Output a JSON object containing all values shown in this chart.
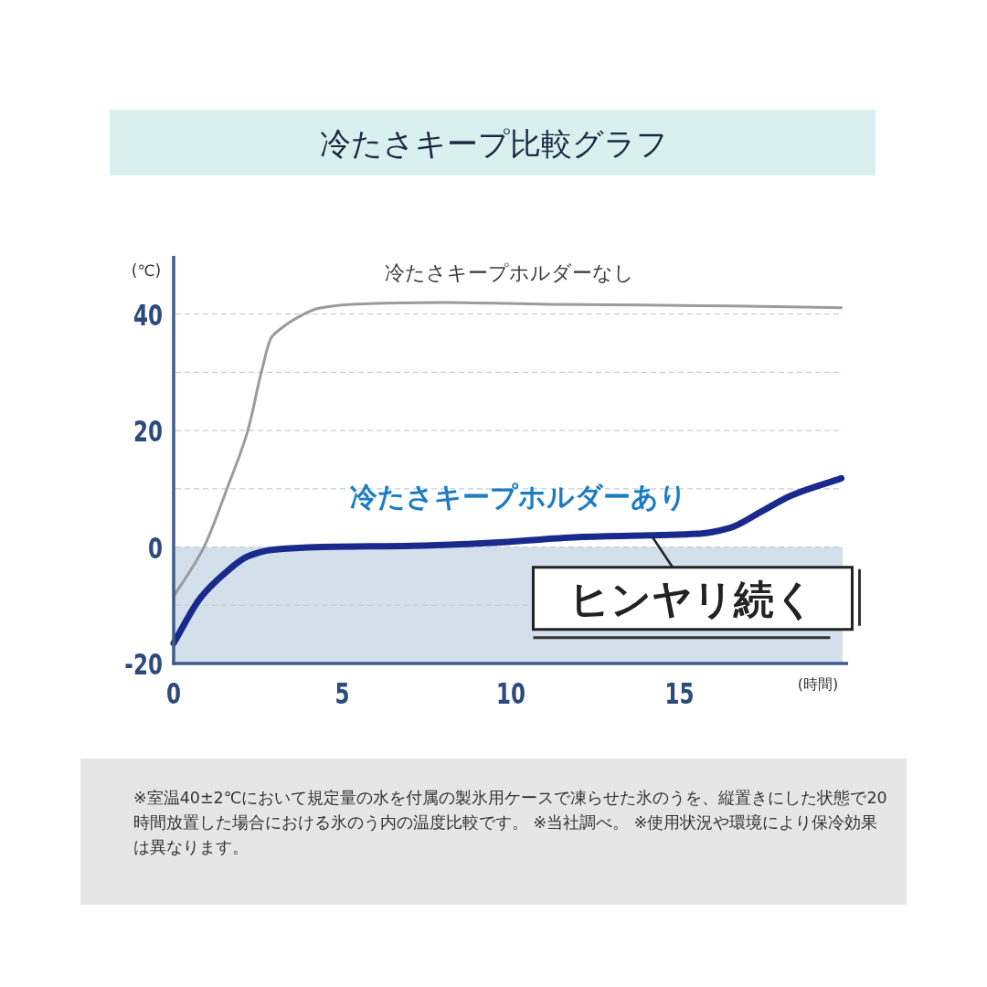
{
  "chart_data": {
    "type": "line",
    "title": "冷たさキープ比較グラフ",
    "ylabel": "(℃)",
    "xlabel": "(時間)",
    "xlim": [
      0,
      20
    ],
    "xticks": [
      0,
      5,
      10,
      15
    ],
    "ylim": [
      -20,
      50
    ],
    "yticks": [
      -20,
      {
        "value": -10,
        "label": null
      },
      0,
      {
        "value": 10,
        "label": null
      },
      20,
      {
        "value": 30,
        "label": null
      },
      40
    ],
    "grid": "y",
    "series": [
      {
        "name": "冷たさキープホルダーなし",
        "color": "#9b9b9b",
        "x": [
          0,
          0.9,
          1.6,
          2.2,
          2.6,
          2.9,
          3.2,
          3.7,
          4.3,
          5.3,
          8,
          11.1,
          16.5,
          19.8
        ],
        "values": [
          -8.5,
          0,
          10.3,
          20,
          30,
          36,
          37.6,
          39.5,
          41,
          41.7,
          42,
          41.7,
          41.4,
          41.1
        ]
      },
      {
        "name": "冷たさキープホルダーあり",
        "color": "#1a2a8c",
        "x": [
          0,
          0.8,
          1.5,
          2.2,
          2.9,
          4.4,
          7.1,
          9.4,
          12,
          15.6,
          16.5,
          17.4,
          18.3,
          19.8
        ],
        "values": [
          -16.5,
          -8.7,
          -4.6,
          -1.6,
          -0.5,
          0,
          0.2,
          0.7,
          1.7,
          2.3,
          3.3,
          6,
          8.8,
          11.8
        ]
      }
    ],
    "bands": [
      {
        "axis": "y",
        "from": -20,
        "to": 0,
        "color": "#d4dfec"
      }
    ],
    "annotations": [
      {
        "text": "ヒンヤリ続く",
        "x": 14.2,
        "y": 1.7
      },
      "※室温40±2℃において規定量の水を付属の製氷用ケースで凍らせた氷のうを、縦置きにした状態で20時間放置した場合における氷のう内の温度比較です。 ※当社調べ。 ※使用状況や環境により保冷効果は異なります。"
    ]
  }
}
